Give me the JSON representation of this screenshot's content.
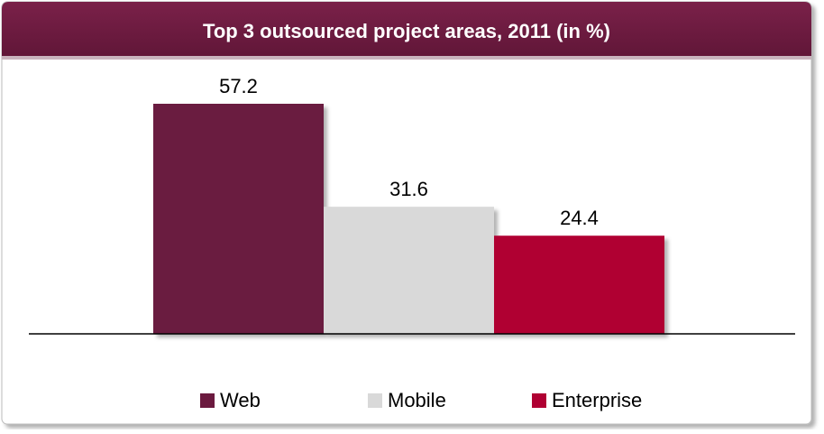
{
  "chart_data": {
    "type": "bar",
    "title": "Top 3 outsourced project areas, 2011 (in %)",
    "series": [
      {
        "name": "Web",
        "color": "#6b1a3f",
        "values": [
          57.2
        ]
      },
      {
        "name": "Mobile",
        "color": "#d9d9d9",
        "values": [
          31.6
        ]
      },
      {
        "name": "Enterprise",
        "color": "#b00033",
        "values": [
          24.4
        ]
      }
    ],
    "legend": "bottom"
  }
}
